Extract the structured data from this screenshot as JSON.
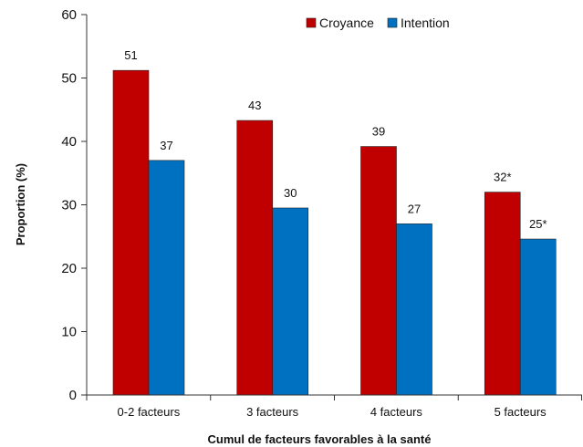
{
  "chart_data": {
    "type": "bar",
    "categories": [
      "0-2 facteurs",
      "3 facteurs",
      "4 facteurs",
      "5 facteurs"
    ],
    "series": [
      {
        "name": "Croyance",
        "values": [
          51.2,
          43.3,
          39.2,
          32.0
        ],
        "labels": [
          "51",
          "43",
          "39",
          "32*"
        ],
        "color": "#c00000"
      },
      {
        "name": "Intention",
        "values": [
          37.0,
          29.5,
          27.0,
          24.6
        ],
        "labels": [
          "37",
          "30",
          "27",
          "25*"
        ],
        "color": "#0070c0"
      }
    ],
    "title": "",
    "xlabel": "Cumul de facteurs favorables à la santé",
    "ylabel": "Proportion (%)",
    "ylim": [
      0,
      60
    ],
    "yticks": [
      "0",
      "10",
      "20",
      "30",
      "40",
      "50",
      "60"
    ],
    "grid": false,
    "legend_position": "top-right"
  }
}
